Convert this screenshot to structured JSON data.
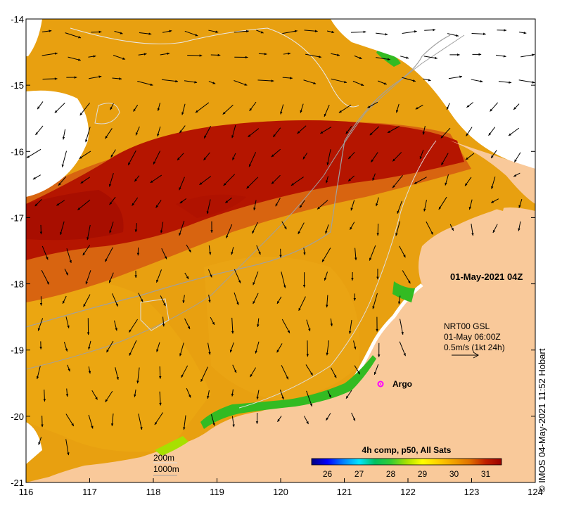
{
  "map": {
    "lon_ticks": [
      "116",
      "117",
      "118",
      "119",
      "120",
      "121",
      "122",
      "123",
      "124"
    ],
    "lat_ticks": [
      "-14",
      "-15",
      "-16",
      "-17",
      "-18",
      "-19",
      "-20",
      "-21"
    ],
    "lon_range": [
      116,
      124
    ],
    "lat_range": [
      -21,
      -14
    ],
    "date_label": "01-May-2021 04Z",
    "current_legend": {
      "line1": "NRT00 GSL",
      "line2": "01-May 06:00Z",
      "line3": "0.5m/s (1kt 24h)"
    },
    "argo_label": "Argo",
    "argo_position": {
      "lon": 121.6,
      "lat": -19.5
    },
    "bathymetry_legend": {
      "contour1": "200m",
      "contour2": "1000m"
    },
    "colorbar": {
      "title": "4h comp, p50, All Sats",
      "ticks": [
        "26",
        "27",
        "28",
        "29",
        "30",
        "31"
      ],
      "range": [
        25.5,
        31.5
      ],
      "colors": [
        "#00007f",
        "#0000ff",
        "#007fff",
        "#00e5ff",
        "#00c060",
        "#33cc33",
        "#a8e000",
        "#ffff00",
        "#ffd000",
        "#f0a000",
        "#e07000",
        "#c02000",
        "#9a0000"
      ]
    },
    "colors": {
      "land": "#f9c99a",
      "warm": "#e8a010",
      "hot": "#b51500",
      "cloud": "#ffffff",
      "green": "#33bb22"
    },
    "credit": "© IMOS 04-May-2021 11:52 Hobart"
  }
}
